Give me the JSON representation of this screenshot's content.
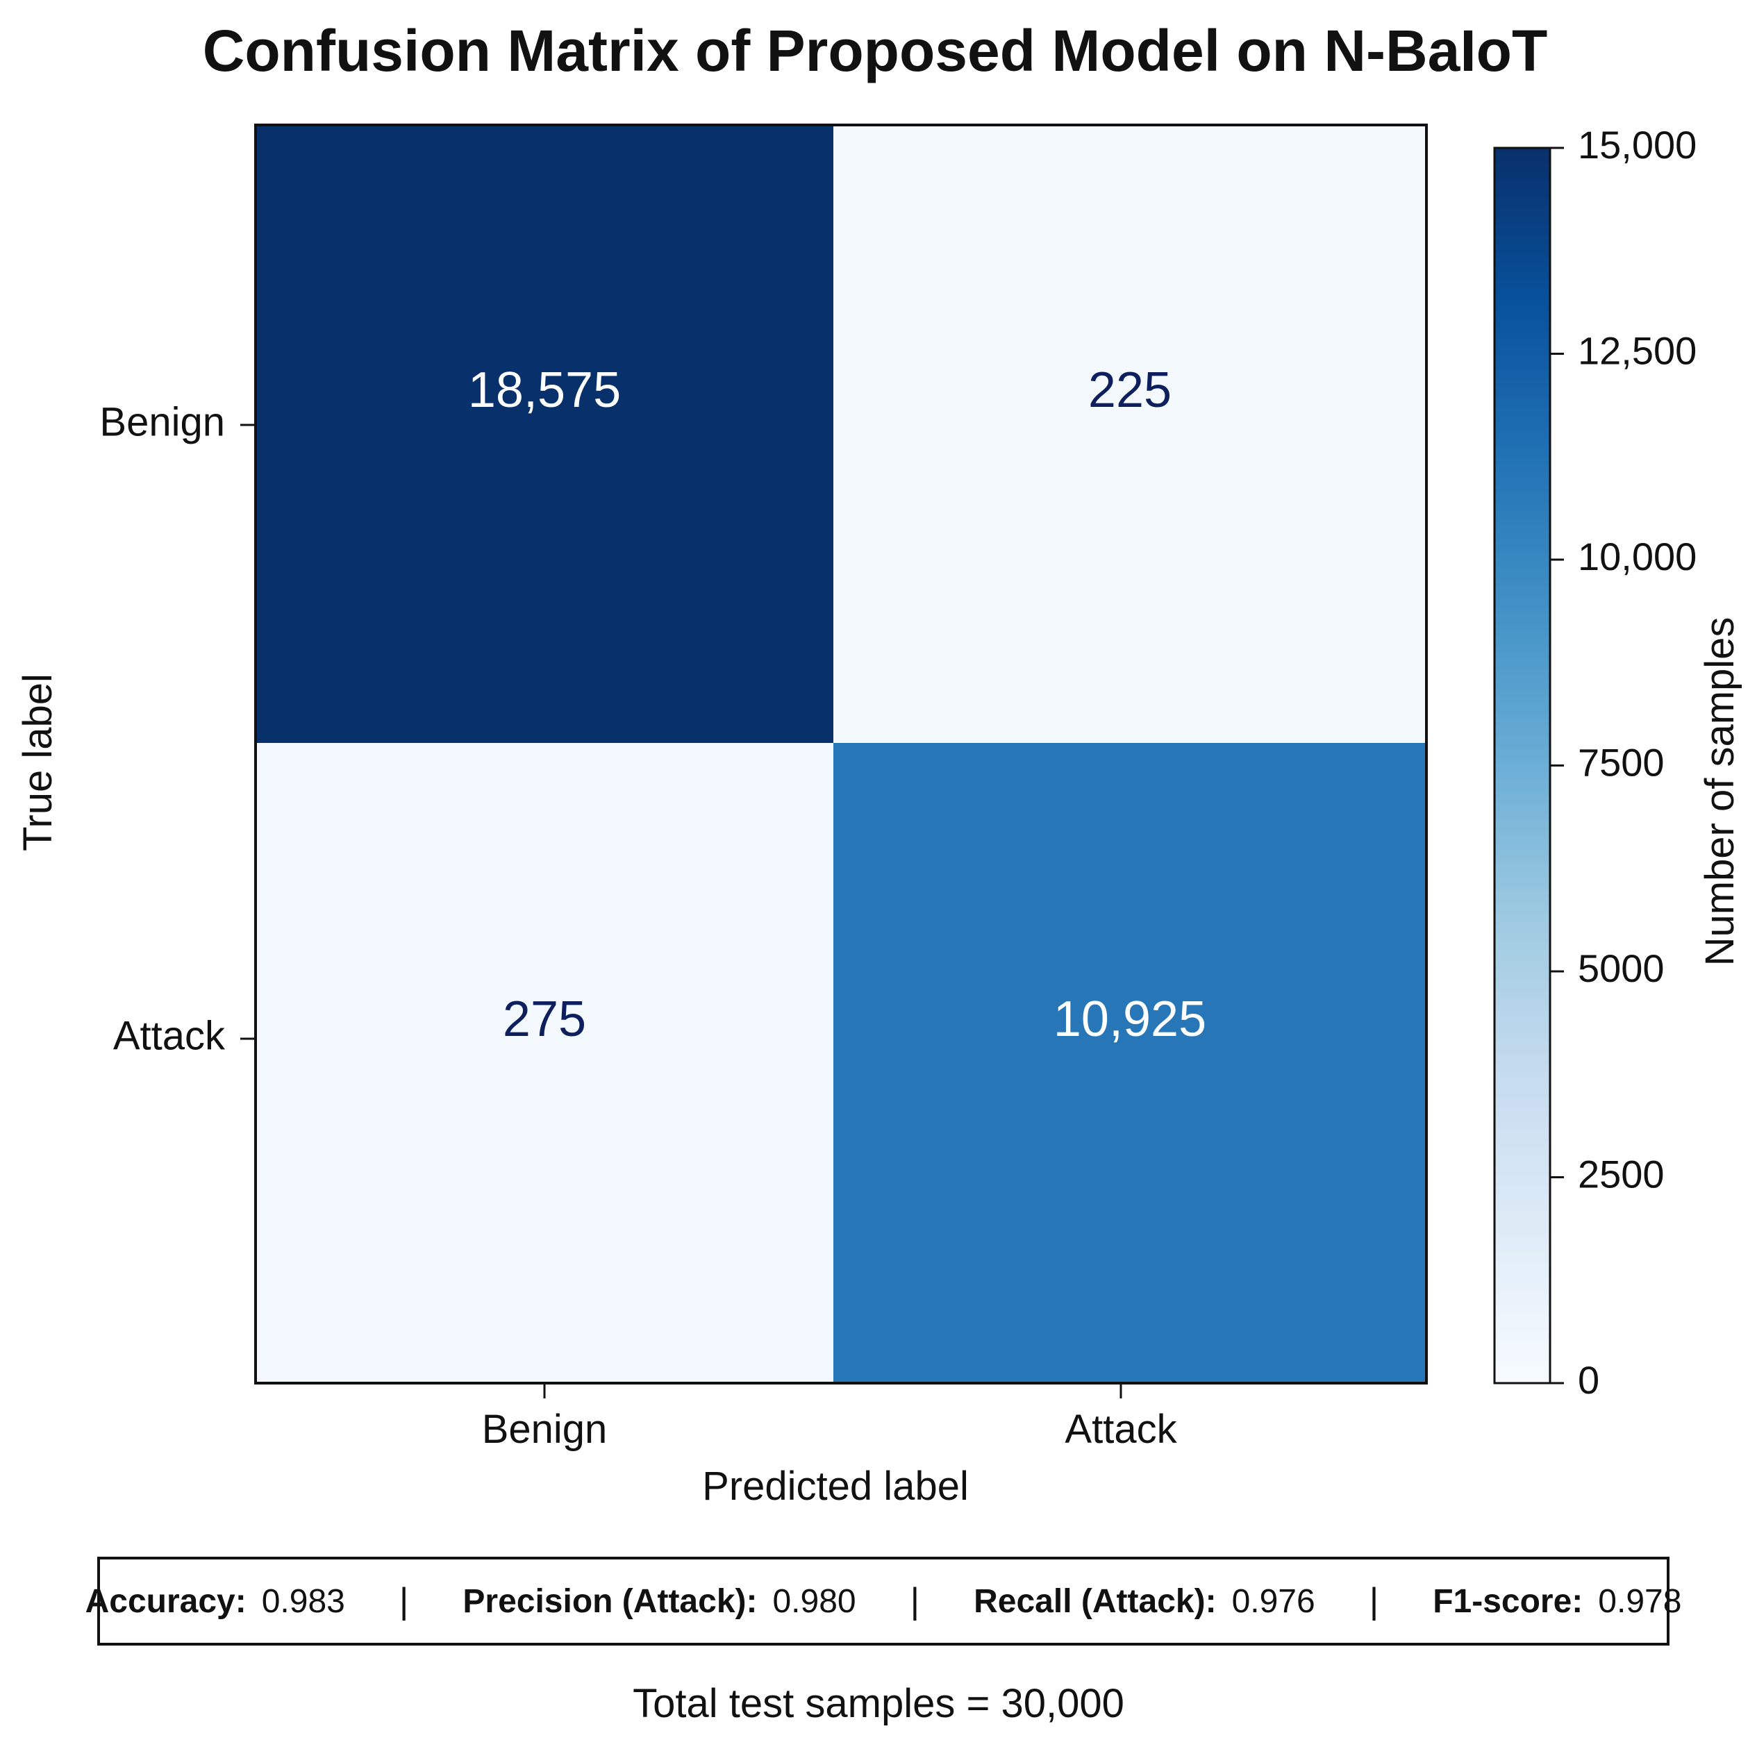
{
  "chart_data": {
    "type": "heatmap",
    "title": "Confusion Matrix of Proposed Model on N-BaIoT",
    "xlabel": "Predicted label",
    "ylabel": "True label",
    "x_categories": [
      "Benign",
      "Attack"
    ],
    "y_categories": [
      "Benign",
      "Attack"
    ],
    "values": [
      [
        18575,
        225
      ],
      [
        275,
        10925
      ]
    ],
    "cell_labels": [
      [
        "18,575",
        "225"
      ],
      [
        "275",
        "10,925"
      ]
    ],
    "colorbar": {
      "label": "Number of samples",
      "range": [
        0,
        15000
      ],
      "ticks": [
        0,
        2500,
        5000,
        7500,
        10000,
        12500,
        15000
      ],
      "tick_labels": [
        "0",
        "2500",
        "5000",
        "7500",
        "10,000",
        "12,500",
        "15,000"
      ],
      "colormap": "Blues",
      "colors": [
        "#f7fbff",
        "#deebf7",
        "#c6dbef",
        "#9ecae1",
        "#6baed6",
        "#4292c6",
        "#2171b5",
        "#08519c",
        "#08306b"
      ]
    },
    "grid": false
  },
  "metrics": [
    {
      "name": "Accuracy:",
      "value": "0.983"
    },
    {
      "name": "Precision (Attack):",
      "value": "0.980"
    },
    {
      "name": "Recall (Attack):",
      "value": "0.976"
    },
    {
      "name": "F1-score:",
      "value": "0.978"
    }
  ],
  "metric_separator": "|",
  "total_text": "Total test samples = 30,000",
  "colors": {
    "dark_text": "#0d1f5c",
    "light_text": "#ffffff",
    "frame": "#111111"
  }
}
